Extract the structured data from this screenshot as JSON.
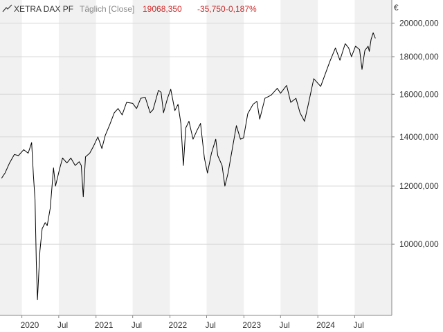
{
  "header": {
    "name": "XETRA DAX PF",
    "mode": "Täglich [Close]",
    "last": "19068,350",
    "change": "-35,750",
    "change_pct": "-0,187%",
    "change_color": "#cc2a2a"
  },
  "icon": "line-chart-icon",
  "chart_data": {
    "type": "line",
    "scale": "log",
    "currency_label": "€",
    "ylim": [
      8000,
      21500
    ],
    "y_ticks": [
      {
        "value": 10000,
        "label": "10000,000"
      },
      {
        "value": 12000,
        "label": "12000,000"
      },
      {
        "value": 14000,
        "label": "14000,000"
      },
      {
        "value": 16000,
        "label": "16000,000"
      },
      {
        "value": 18000,
        "label": "18000,000"
      },
      {
        "value": 20000,
        "label": "20000,000"
      }
    ],
    "x_ticks": [
      {
        "date": "2020-01-01",
        "label": "2020"
      },
      {
        "date": "2020-07-01",
        "label": "Jul"
      },
      {
        "date": "2021-01-01",
        "label": "2021"
      },
      {
        "date": "2021-07-01",
        "label": "Jul"
      },
      {
        "date": "2022-01-01",
        "label": "2022"
      },
      {
        "date": "2022-07-01",
        "label": "Jul"
      },
      {
        "date": "2023-01-01",
        "label": "2023"
      },
      {
        "date": "2023-07-01",
        "label": "Jul"
      },
      {
        "date": "2024-01-01",
        "label": "2024"
      },
      {
        "date": "2024-07-01",
        "label": "Jul"
      }
    ],
    "xlim": [
      "2019-09-15",
      "2024-12-31"
    ],
    "grid": true,
    "series": [
      {
        "color": "#000000",
        "points": [
          [
            "2019-09-23",
            12300
          ],
          [
            "2019-10-10",
            12500
          ],
          [
            "2019-11-01",
            12900
          ],
          [
            "2019-11-25",
            13250
          ],
          [
            "2019-12-15",
            13200
          ],
          [
            "2020-01-10",
            13450
          ],
          [
            "2020-02-01",
            13300
          ],
          [
            "2020-02-18",
            13750
          ],
          [
            "2020-02-27",
            12400
          ],
          [
            "2020-03-06",
            11500
          ],
          [
            "2020-03-12",
            9500
          ],
          [
            "2020-03-18",
            8400
          ],
          [
            "2020-03-30",
            9800
          ],
          [
            "2020-04-10",
            10500
          ],
          [
            "2020-04-25",
            10700
          ],
          [
            "2020-05-05",
            10600
          ],
          [
            "2020-05-20",
            11200
          ],
          [
            "2020-06-05",
            12700
          ],
          [
            "2020-06-15",
            12000
          ],
          [
            "2020-07-05",
            12650
          ],
          [
            "2020-07-20",
            13100
          ],
          [
            "2020-08-10",
            12900
          ],
          [
            "2020-08-30",
            13100
          ],
          [
            "2020-09-20",
            12800
          ],
          [
            "2020-10-10",
            12950
          ],
          [
            "2020-10-20",
            12800
          ],
          [
            "2020-10-30",
            11600
          ],
          [
            "2020-11-10",
            13150
          ],
          [
            "2020-12-01",
            13300
          ],
          [
            "2020-12-20",
            13600
          ],
          [
            "2021-01-10",
            14000
          ],
          [
            "2021-01-30",
            13500
          ],
          [
            "2021-02-15",
            14050
          ],
          [
            "2021-03-10",
            14550
          ],
          [
            "2021-04-01",
            15100
          ],
          [
            "2021-04-20",
            15300
          ],
          [
            "2021-05-10",
            15000
          ],
          [
            "2021-06-01",
            15600
          ],
          [
            "2021-07-01",
            15550
          ],
          [
            "2021-07-20",
            15300
          ],
          [
            "2021-08-10",
            15800
          ],
          [
            "2021-09-01",
            15850
          ],
          [
            "2021-09-25",
            15100
          ],
          [
            "2021-10-10",
            15250
          ],
          [
            "2021-11-05",
            16200
          ],
          [
            "2021-11-18",
            16100
          ],
          [
            "2021-11-30",
            15100
          ],
          [
            "2021-12-20",
            15800
          ],
          [
            "2022-01-05",
            16250
          ],
          [
            "2022-01-25",
            15200
          ],
          [
            "2022-02-10",
            15500
          ],
          [
            "2022-02-24",
            14600
          ],
          [
            "2022-03-08",
            12800
          ],
          [
            "2022-03-20",
            14400
          ],
          [
            "2022-04-05",
            14700
          ],
          [
            "2022-04-25",
            13900
          ],
          [
            "2022-05-15",
            14300
          ],
          [
            "2022-06-01",
            14600
          ],
          [
            "2022-06-20",
            13100
          ],
          [
            "2022-07-05",
            12500
          ],
          [
            "2022-07-25",
            13300
          ],
          [
            "2022-08-15",
            13900
          ],
          [
            "2022-08-25",
            13200
          ],
          [
            "2022-09-15",
            12800
          ],
          [
            "2022-09-29",
            12000
          ],
          [
            "2022-10-15",
            12500
          ],
          [
            "2022-11-01",
            13300
          ],
          [
            "2022-11-25",
            14500
          ],
          [
            "2022-12-15",
            13900
          ],
          [
            "2022-12-30",
            13950
          ],
          [
            "2023-01-20",
            15050
          ],
          [
            "2023-02-15",
            15500
          ],
          [
            "2023-03-06",
            15650
          ],
          [
            "2023-03-20",
            14800
          ],
          [
            "2023-04-15",
            15800
          ],
          [
            "2023-05-15",
            15950
          ],
          [
            "2023-06-15",
            16300
          ],
          [
            "2023-07-01",
            16050
          ],
          [
            "2023-07-31",
            16450
          ],
          [
            "2023-08-20",
            15600
          ],
          [
            "2023-09-15",
            15800
          ],
          [
            "2023-10-05",
            15100
          ],
          [
            "2023-10-27",
            14700
          ],
          [
            "2023-11-15",
            15500
          ],
          [
            "2023-12-12",
            16800
          ],
          [
            "2024-01-15",
            16400
          ],
          [
            "2024-02-05",
            17000
          ],
          [
            "2024-03-01",
            17750
          ],
          [
            "2024-03-28",
            18500
          ],
          [
            "2024-04-19",
            17800
          ],
          [
            "2024-05-15",
            18750
          ],
          [
            "2024-06-01",
            18500
          ],
          [
            "2024-06-15",
            18000
          ],
          [
            "2024-07-05",
            18600
          ],
          [
            "2024-07-25",
            18400
          ],
          [
            "2024-08-06",
            17300
          ],
          [
            "2024-08-20",
            18350
          ],
          [
            "2024-09-05",
            18600
          ],
          [
            "2024-09-11",
            18300
          ],
          [
            "2024-09-20",
            19000
          ],
          [
            "2024-09-30",
            19400
          ],
          [
            "2024-10-11",
            19068
          ]
        ]
      }
    ]
  }
}
